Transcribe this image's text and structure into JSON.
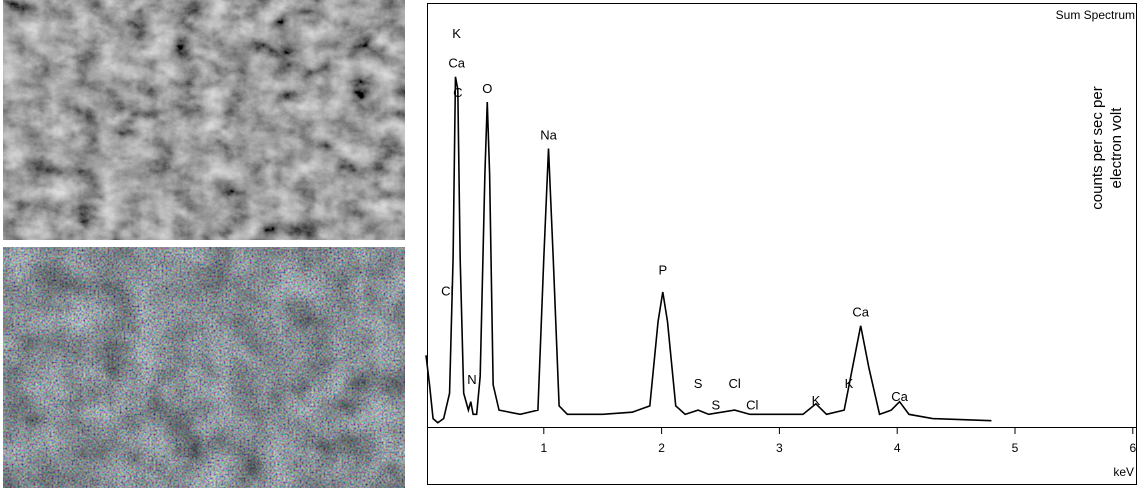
{
  "chart_data": {
    "type": "line",
    "title": "Sum Spectrum",
    "x_label": "keV",
    "y_label": [
      "counts per sec per",
      "electron volt"
    ],
    "xlim": [
      0,
      6
    ],
    "xticks": [
      1,
      2,
      3,
      4,
      5,
      6
    ],
    "ylim": [
      0,
      100
    ],
    "series": [
      {
        "color": "#000000",
        "x": [
          0.0,
          0.03,
          0.06,
          0.1,
          0.15,
          0.2,
          0.23,
          0.25,
          0.27,
          0.29,
          0.32,
          0.36,
          0.38,
          0.4,
          0.43,
          0.46,
          0.5,
          0.52,
          0.54,
          0.57,
          0.62,
          0.8,
          0.95,
          1.0,
          1.04,
          1.08,
          1.13,
          1.2,
          1.5,
          1.75,
          1.9,
          1.97,
          2.01,
          2.05,
          2.12,
          2.2,
          2.31,
          2.4,
          2.62,
          2.75,
          3.0,
          3.2,
          3.31,
          3.4,
          3.55,
          3.62,
          3.69,
          3.76,
          3.85,
          3.95,
          4.02,
          4.1,
          4.3,
          4.8
        ],
        "values": [
          17,
          10,
          2,
          1,
          2,
          8,
          40,
          83,
          80,
          40,
          8,
          4,
          6,
          3,
          3,
          12,
          60,
          77,
          60,
          10,
          4,
          3,
          4,
          40,
          66,
          40,
          5,
          3,
          3,
          3.5,
          5,
          25,
          32,
          25,
          5,
          3,
          4,
          3,
          4,
          3,
          3,
          3,
          5.5,
          3,
          4,
          14,
          24,
          14,
          3,
          4,
          6,
          3,
          2,
          1.5
        ]
      }
    ],
    "annotations": [
      {
        "text": "K",
        "x": 0.26,
        "y": 93
      },
      {
        "text": "Ca",
        "x": 0.26,
        "y": 86
      },
      {
        "text": "C",
        "x": 0.27,
        "y": 79
      },
      {
        "text": "O",
        "x": 0.52,
        "y": 80
      },
      {
        "text": "Na",
        "x": 1.04,
        "y": 69
      },
      {
        "text": "P",
        "x": 2.01,
        "y": 37
      },
      {
        "text": "S",
        "x": 2.31,
        "y": 10
      },
      {
        "text": "S",
        "x": 2.46,
        "y": 5
      },
      {
        "text": "Cl",
        "x": 2.62,
        "y": 10
      },
      {
        "text": "Cl",
        "x": 2.77,
        "y": 5
      },
      {
        "text": "K",
        "x": 3.31,
        "y": 6
      },
      {
        "text": "K",
        "x": 3.59,
        "y": 10
      },
      {
        "text": "Ca",
        "x": 3.69,
        "y": 27
      },
      {
        "text": "Ca",
        "x": 4.02,
        "y": 7
      },
      {
        "text": "Cl",
        "x": 0.18,
        "y": 32
      },
      {
        "text": "N",
        "x": 0.39,
        "y": 11
      }
    ]
  }
}
